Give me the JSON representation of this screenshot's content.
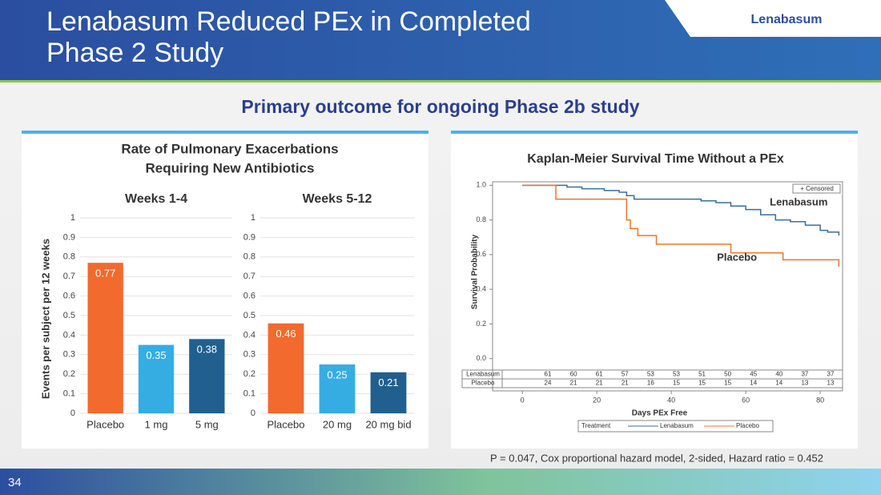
{
  "header": {
    "title_lines": [
      "Lenabasum Reduced PEx in Completed",
      "Phase 2 Study"
    ],
    "tag": "Lenabasum"
  },
  "subtitle": "Primary outcome for ongoing Phase 2b study",
  "left_panel": {
    "title_lines": [
      "Rate of Pulmonary Exacerbations",
      "Requiring New Antibiotics"
    ],
    "ylabel": "Events per subject per 12 weeks"
  },
  "chart_data": [
    {
      "type": "bar",
      "title": "Weeks 1-4",
      "categories": [
        "Placebo",
        "1 mg",
        "5 mg"
      ],
      "values": [
        0.77,
        0.35,
        0.38
      ],
      "colors": [
        "#f26a2e",
        "#35ade3",
        "#215f8f"
      ],
      "ylim": [
        0,
        1
      ],
      "yticks": [
        0,
        0.1,
        0.2,
        0.3,
        0.4,
        0.5,
        0.6,
        0.7,
        0.8,
        0.9,
        1
      ],
      "grid": true
    },
    {
      "type": "bar",
      "title": "Weeks 5-12",
      "categories": [
        "Placebo",
        "20 mg",
        "20 mg bid"
      ],
      "values": [
        0.46,
        0.25,
        0.21
      ],
      "colors": [
        "#f26a2e",
        "#35ade3",
        "#215f8f"
      ],
      "ylim": [
        0,
        1
      ],
      "yticks": [
        0,
        0.1,
        0.2,
        0.3,
        0.4,
        0.5,
        0.6,
        0.7,
        0.8,
        0.9,
        1
      ],
      "grid": true
    },
    {
      "type": "line",
      "title": "Kaplan-Meier Survival Time Without a PEx",
      "xlabel": "Days PEx Free",
      "ylabel": "Survival Probability",
      "xlim": [
        -8,
        86
      ],
      "ylim": [
        -0.02,
        1.02
      ],
      "xticks": [
        0,
        20,
        40,
        60,
        80
      ],
      "yticks": [
        {
          "value": 0,
          "label": "0.0"
        },
        0.2,
        0.4,
        0.6,
        0.8,
        {
          "value": 1,
          "label": "1.0"
        }
      ],
      "censored_label": "+ Censored",
      "legend_title": "Treatment",
      "series": [
        {
          "name": "Lenabasum",
          "color": "#3a6f9a",
          "x": [
            0,
            12,
            12,
            16,
            16,
            22,
            22,
            26,
            26,
            28,
            28,
            30,
            30,
            48,
            48,
            52,
            52,
            56,
            56,
            60,
            60,
            64,
            64,
            68,
            68,
            72,
            72,
            76,
            76,
            80,
            80,
            82,
            82,
            85,
            85
          ],
          "values": [
            1,
            1,
            0.99,
            0.99,
            0.98,
            0.98,
            0.97,
            0.97,
            0.96,
            0.96,
            0.94,
            0.94,
            0.92,
            0.92,
            0.91,
            0.91,
            0.9,
            0.9,
            0.88,
            0.88,
            0.86,
            0.86,
            0.83,
            0.83,
            0.8,
            0.8,
            0.79,
            0.79,
            0.77,
            0.77,
            0.74,
            0.74,
            0.73,
            0.73,
            0.71
          ]
        },
        {
          "name": "Placebo",
          "color": "#e8772e",
          "x": [
            0,
            9,
            9,
            28,
            28,
            29,
            29,
            31,
            31,
            36,
            36,
            56,
            56,
            70,
            70,
            85,
            85
          ],
          "values": [
            1,
            1,
            0.92,
            0.92,
            0.8,
            0.8,
            0.75,
            0.75,
            0.71,
            0.71,
            0.66,
            0.66,
            0.61,
            0.61,
            0.57,
            0.57,
            0.53
          ]
        }
      ],
      "risk_table": [
        {
          "name": "Lenabasum",
          "values": [
            61,
            60,
            61,
            57,
            53,
            53,
            51,
            50,
            45,
            40,
            37,
            37
          ]
        },
        {
          "name": "Placebo",
          "values": [
            24,
            21,
            21,
            21,
            16,
            15,
            15,
            15,
            14,
            14,
            13,
            13
          ]
        }
      ]
    }
  ],
  "footnote": "P = 0.047, Cox proportional hazard model, 2-sided, Hazard ratio = 0.452",
  "page_number": "34"
}
